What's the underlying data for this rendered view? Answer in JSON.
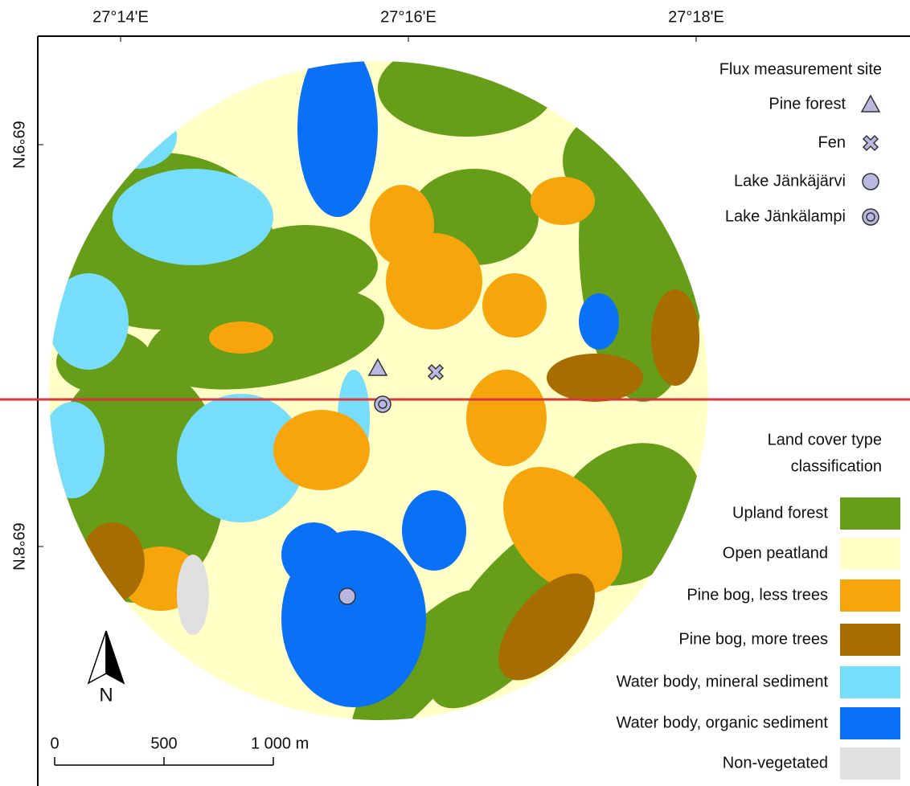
{
  "map": {
    "longitude_labels": [
      "27°14'E",
      "27°16'E",
      "27°18'E"
    ],
    "latitude_labels": [
      "69°9'N",
      "69°8'N"
    ],
    "site_legend": {
      "title": "Flux measurement site",
      "items": [
        "Pine forest",
        "Fen",
        "Lake Jänkäjärvi",
        "Lake Jänkälampi"
      ]
    },
    "cover_legend": {
      "title_lines": [
        "Land cover type",
        "classification"
      ],
      "items": [
        {
          "label": "Upland forest",
          "color": "#669e1a"
        },
        {
          "label": "Open peatland",
          "color": "#ffffc6"
        },
        {
          "label": "Pine bog, less trees",
          "color": "#f7a50d"
        },
        {
          "label": "Pine bog, more trees",
          "color": "#a86d00"
        },
        {
          "label": "Water body, mineral sediment",
          "color": "#76ddfb"
        },
        {
          "label": "Water body, organic sediment",
          "color": "#0a70f5"
        },
        {
          "label": "Non-vegetated",
          "color": "#e0e0e0"
        }
      ]
    },
    "scale_bar": {
      "labels": [
        "0",
        "500",
        "1 000 m"
      ]
    },
    "north_label": "N"
  }
}
